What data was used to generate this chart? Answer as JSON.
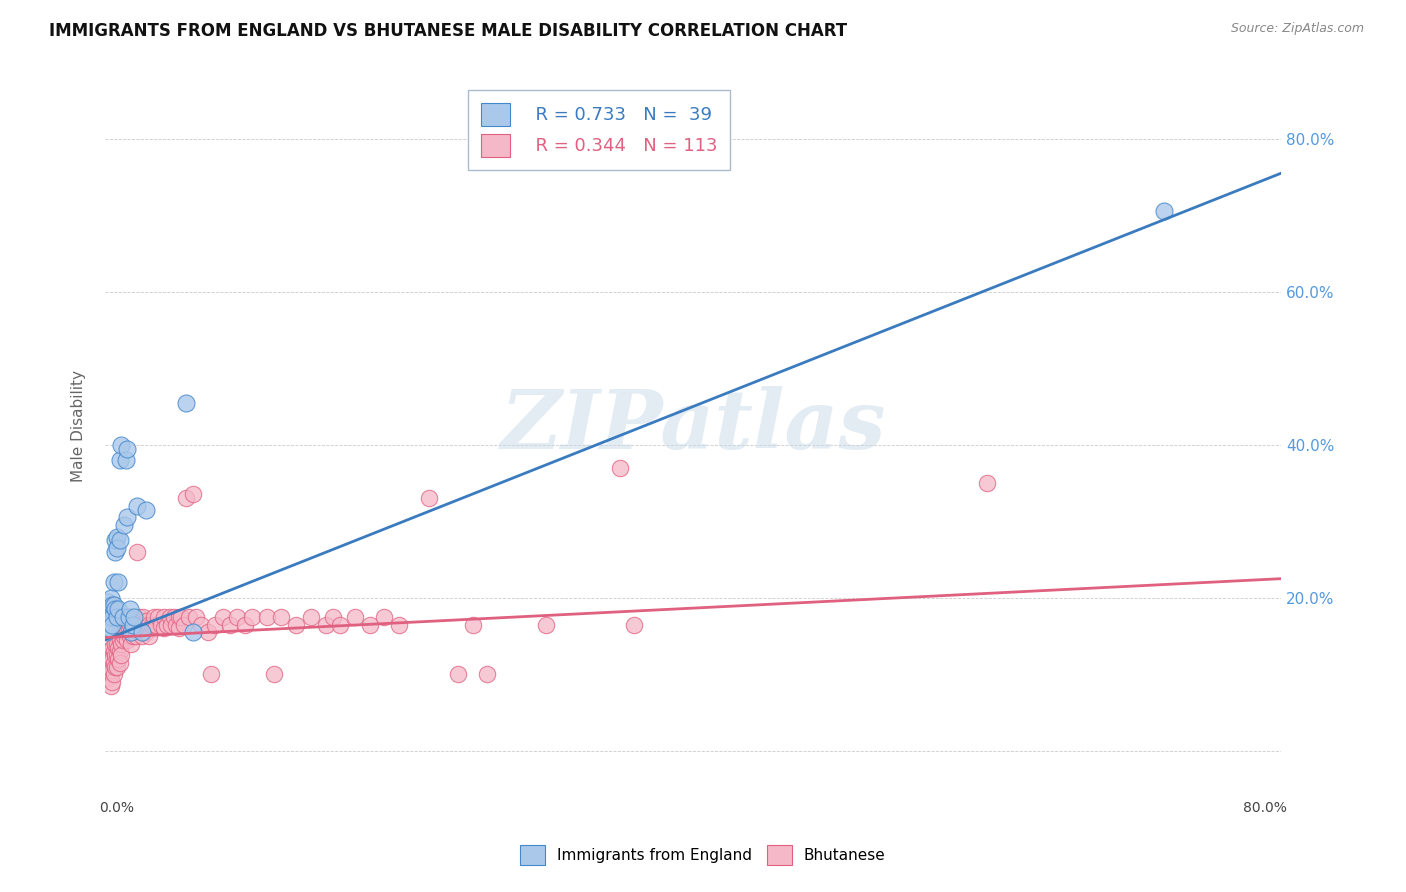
{
  "title": "IMMIGRANTS FROM ENGLAND VS BHUTANESE MALE DISABILITY CORRELATION CHART",
  "source": "Source: ZipAtlas.com",
  "ylabel": "Male Disability",
  "ytick_values": [
    0.0,
    0.2,
    0.4,
    0.6,
    0.8
  ],
  "ytick_labels": [
    "",
    "20.0%",
    "40.0%",
    "60.0%",
    "80.0%"
  ],
  "xlim": [
    0.0,
    0.8
  ],
  "ylim": [
    -0.03,
    0.88
  ],
  "legend_blue_R": "R = 0.733",
  "legend_blue_N": "N =  39",
  "legend_pink_R": "R = 0.344",
  "legend_pink_N": "N = 113",
  "blue_fill": "#aac8ea",
  "pink_fill": "#f5b8c8",
  "blue_edge": "#4488cc",
  "pink_edge": "#e06080",
  "blue_line": "#3a7bbf",
  "pink_line": "#e06080",
  "watermark": "ZIPatlas",
  "blue_trendline": [
    [
      0.0,
      0.145
    ],
    [
      0.8,
      0.755
    ]
  ],
  "pink_trendline": [
    [
      0.0,
      0.148
    ],
    [
      0.8,
      0.225
    ]
  ],
  "blue_scatter": [
    [
      0.001,
      0.155
    ],
    [
      0.002,
      0.175
    ],
    [
      0.002,
      0.195
    ],
    [
      0.003,
      0.16
    ],
    [
      0.003,
      0.185
    ],
    [
      0.004,
      0.2
    ],
    [
      0.004,
      0.185
    ],
    [
      0.005,
      0.175
    ],
    [
      0.005,
      0.165
    ],
    [
      0.005,
      0.19
    ],
    [
      0.006,
      0.22
    ],
    [
      0.006,
      0.19
    ],
    [
      0.007,
      0.26
    ],
    [
      0.007,
      0.275
    ],
    [
      0.007,
      0.185
    ],
    [
      0.008,
      0.28
    ],
    [
      0.008,
      0.265
    ],
    [
      0.008,
      0.175
    ],
    [
      0.009,
      0.22
    ],
    [
      0.009,
      0.185
    ],
    [
      0.01,
      0.275
    ],
    [
      0.01,
      0.38
    ],
    [
      0.011,
      0.4
    ],
    [
      0.012,
      0.175
    ],
    [
      0.013,
      0.295
    ],
    [
      0.014,
      0.38
    ],
    [
      0.015,
      0.395
    ],
    [
      0.015,
      0.305
    ],
    [
      0.016,
      0.175
    ],
    [
      0.017,
      0.185
    ],
    [
      0.018,
      0.155
    ],
    [
      0.019,
      0.165
    ],
    [
      0.02,
      0.175
    ],
    [
      0.022,
      0.32
    ],
    [
      0.025,
      0.155
    ],
    [
      0.028,
      0.315
    ],
    [
      0.055,
      0.455
    ],
    [
      0.06,
      0.155
    ],
    [
      0.72,
      0.705
    ]
  ],
  "pink_scatter": [
    [
      0.001,
      0.12
    ],
    [
      0.001,
      0.105
    ],
    [
      0.001,
      0.095
    ],
    [
      0.002,
      0.13
    ],
    [
      0.002,
      0.115
    ],
    [
      0.002,
      0.105
    ],
    [
      0.003,
      0.125
    ],
    [
      0.003,
      0.11
    ],
    [
      0.003,
      0.095
    ],
    [
      0.004,
      0.13
    ],
    [
      0.004,
      0.115
    ],
    [
      0.004,
      0.1
    ],
    [
      0.004,
      0.085
    ],
    [
      0.005,
      0.135
    ],
    [
      0.005,
      0.12
    ],
    [
      0.005,
      0.105
    ],
    [
      0.005,
      0.09
    ],
    [
      0.006,
      0.13
    ],
    [
      0.006,
      0.115
    ],
    [
      0.006,
      0.1
    ],
    [
      0.007,
      0.14
    ],
    [
      0.007,
      0.125
    ],
    [
      0.007,
      0.11
    ],
    [
      0.008,
      0.14
    ],
    [
      0.008,
      0.125
    ],
    [
      0.008,
      0.11
    ],
    [
      0.009,
      0.135
    ],
    [
      0.009,
      0.12
    ],
    [
      0.01,
      0.145
    ],
    [
      0.01,
      0.13
    ],
    [
      0.01,
      0.115
    ],
    [
      0.011,
      0.155
    ],
    [
      0.011,
      0.14
    ],
    [
      0.011,
      0.125
    ],
    [
      0.012,
      0.16
    ],
    [
      0.012,
      0.145
    ],
    [
      0.013,
      0.165
    ],
    [
      0.013,
      0.15
    ],
    [
      0.014,
      0.17
    ],
    [
      0.014,
      0.155
    ],
    [
      0.015,
      0.175
    ],
    [
      0.015,
      0.16
    ],
    [
      0.015,
      0.145
    ],
    [
      0.016,
      0.175
    ],
    [
      0.016,
      0.16
    ],
    [
      0.017,
      0.165
    ],
    [
      0.017,
      0.15
    ],
    [
      0.018,
      0.155
    ],
    [
      0.018,
      0.14
    ],
    [
      0.019,
      0.165
    ],
    [
      0.019,
      0.15
    ],
    [
      0.02,
      0.17
    ],
    [
      0.02,
      0.155
    ],
    [
      0.021,
      0.165
    ],
    [
      0.021,
      0.15
    ],
    [
      0.022,
      0.26
    ],
    [
      0.023,
      0.175
    ],
    [
      0.023,
      0.16
    ],
    [
      0.024,
      0.17
    ],
    [
      0.025,
      0.165
    ],
    [
      0.025,
      0.15
    ],
    [
      0.026,
      0.175
    ],
    [
      0.027,
      0.165
    ],
    [
      0.028,
      0.17
    ],
    [
      0.028,
      0.155
    ],
    [
      0.03,
      0.165
    ],
    [
      0.03,
      0.15
    ],
    [
      0.032,
      0.165
    ],
    [
      0.033,
      0.175
    ],
    [
      0.035,
      0.165
    ],
    [
      0.036,
      0.175
    ],
    [
      0.038,
      0.165
    ],
    [
      0.04,
      0.175
    ],
    [
      0.04,
      0.16
    ],
    [
      0.042,
      0.165
    ],
    [
      0.044,
      0.175
    ],
    [
      0.045,
      0.165
    ],
    [
      0.047,
      0.175
    ],
    [
      0.048,
      0.165
    ],
    [
      0.05,
      0.175
    ],
    [
      0.05,
      0.16
    ],
    [
      0.052,
      0.175
    ],
    [
      0.054,
      0.165
    ],
    [
      0.055,
      0.33
    ],
    [
      0.057,
      0.175
    ],
    [
      0.06,
      0.335
    ],
    [
      0.062,
      0.175
    ],
    [
      0.065,
      0.165
    ],
    [
      0.07,
      0.155
    ],
    [
      0.072,
      0.1
    ],
    [
      0.075,
      0.165
    ],
    [
      0.08,
      0.175
    ],
    [
      0.085,
      0.165
    ],
    [
      0.09,
      0.175
    ],
    [
      0.095,
      0.165
    ],
    [
      0.1,
      0.175
    ],
    [
      0.11,
      0.175
    ],
    [
      0.115,
      0.1
    ],
    [
      0.12,
      0.175
    ],
    [
      0.13,
      0.165
    ],
    [
      0.14,
      0.175
    ],
    [
      0.15,
      0.165
    ],
    [
      0.155,
      0.175
    ],
    [
      0.16,
      0.165
    ],
    [
      0.17,
      0.175
    ],
    [
      0.18,
      0.165
    ],
    [
      0.19,
      0.175
    ],
    [
      0.2,
      0.165
    ],
    [
      0.22,
      0.33
    ],
    [
      0.24,
      0.1
    ],
    [
      0.25,
      0.165
    ],
    [
      0.26,
      0.1
    ],
    [
      0.3,
      0.165
    ],
    [
      0.35,
      0.37
    ],
    [
      0.36,
      0.165
    ],
    [
      0.6,
      0.35
    ]
  ]
}
